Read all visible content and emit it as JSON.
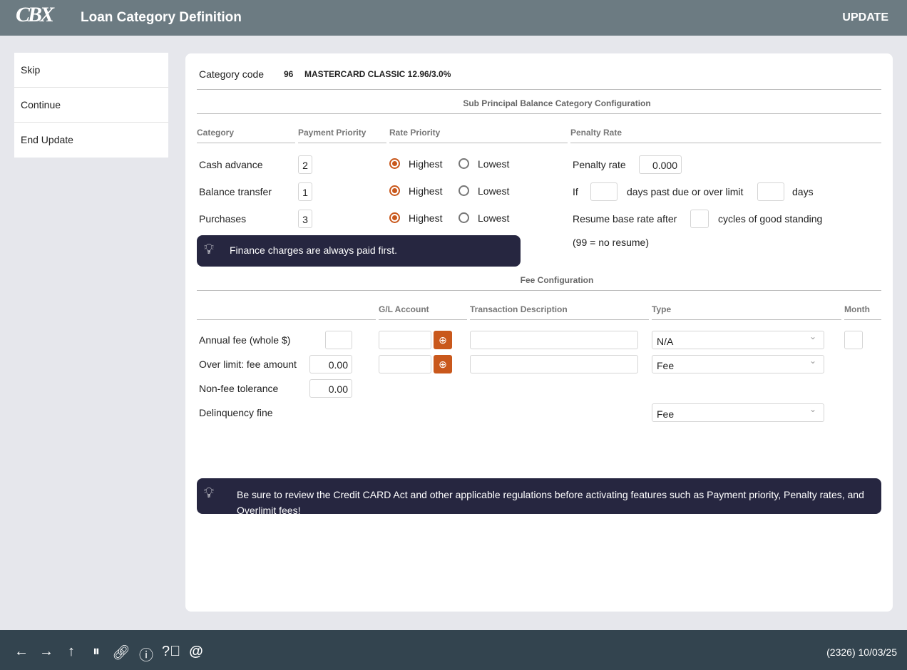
{
  "header": {
    "logo": "CBX",
    "title": "Loan Category Definition",
    "mode": "UPDATE"
  },
  "sidebar": {
    "items": [
      {
        "label": "Skip"
      },
      {
        "label": "Continue"
      },
      {
        "label": "End Update"
      }
    ]
  },
  "category": {
    "label": "Category code",
    "code": "96",
    "name": "MASTERCARD CLASSIC 12.96/3.0%"
  },
  "sub": {
    "title": "Sub Principal Balance Category Configuration",
    "cols": {
      "category": "Category",
      "payment": "Payment Priority",
      "rate": "Rate Priority",
      "penalty": "Penalty Rate"
    },
    "rows": [
      {
        "name": "Cash advance",
        "priority": "2",
        "rate": "Highest"
      },
      {
        "name": "Balance transfer",
        "priority": "1",
        "rate": "Highest"
      },
      {
        "name": "Purchases",
        "priority": "3",
        "rate": "Highest"
      }
    ],
    "highest": "Highest",
    "lowest": "Lowest",
    "tip": "Finance charges are always paid first.",
    "penalty_rate_label": "Penalty rate",
    "penalty_rate": "0.000",
    "if": "If",
    "days_past_due": "days past due or over limit",
    "days": "days",
    "resume_label": "Resume base rate after",
    "cycles": "cycles of good standing",
    "note": "(99 = no resume)"
  },
  "fee": {
    "title": "Fee Configuration",
    "cols": {
      "gl": "G/L Account",
      "desc": "Transaction Description",
      "type": "Type",
      "month": "Month"
    },
    "rows": [
      {
        "label": "Annual fee (whole $)",
        "amount": "",
        "type": "N/A"
      },
      {
        "label": "Over limit: fee amount",
        "amount": "0.00",
        "type": "Fee"
      },
      {
        "label": "Non-fee tolerance",
        "amount": "0.00"
      },
      {
        "label": "Delinquency fine",
        "type": "Fee"
      }
    ],
    "tip": "Be sure to review the Credit CARD Act and other applicable regulations before activating features such as Payment priority, Penalty rates, and Overlimit fees!"
  },
  "footer": {
    "status": "(2326) 10/03/25",
    "icons": [
      "arrow-left",
      "arrow-right",
      "arrow-up",
      "pause",
      "link",
      "info",
      "help",
      "at"
    ]
  },
  "colors": {
    "accent": "#c9581c",
    "header": "#6c7b82",
    "footer": "#33444f",
    "tip": "#262640"
  }
}
